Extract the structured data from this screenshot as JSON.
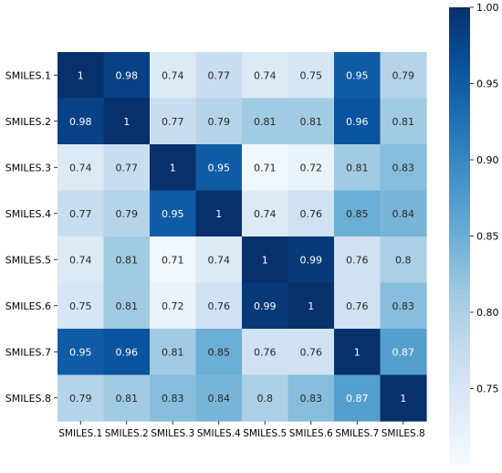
{
  "chart_data": {
    "type": "heatmap",
    "x_labels": [
      "SMILES.1",
      "SMILES.2",
      "SMILES.3",
      "SMILES.4",
      "SMILES.5",
      "SMILES.6",
      "SMILES.7",
      "SMILES.8"
    ],
    "y_labels": [
      "SMILES.1",
      "SMILES.2",
      "SMILES.3",
      "SMILES.4",
      "SMILES.5",
      "SMILES.6",
      "SMILES.7",
      "SMILES.8"
    ],
    "values": [
      [
        1,
        0.98,
        0.74,
        0.77,
        0.74,
        0.75,
        0.95,
        0.79
      ],
      [
        0.98,
        1,
        0.77,
        0.79,
        0.81,
        0.81,
        0.96,
        0.81
      ],
      [
        0.74,
        0.77,
        1,
        0.95,
        0.71,
        0.72,
        0.81,
        0.83
      ],
      [
        0.77,
        0.79,
        0.95,
        1,
        0.74,
        0.76,
        0.85,
        0.84
      ],
      [
        0.74,
        0.81,
        0.71,
        0.74,
        1,
        0.99,
        0.76,
        0.8
      ],
      [
        0.75,
        0.81,
        0.72,
        0.76,
        0.99,
        1,
        0.76,
        0.83
      ],
      [
        0.95,
        0.96,
        0.81,
        0.85,
        0.76,
        0.76,
        1,
        0.87
      ],
      [
        0.79,
        0.81,
        0.83,
        0.84,
        0.8,
        0.83,
        0.87,
        1
      ]
    ],
    "cell_labels": [
      [
        "1",
        "0.98",
        "0.74",
        "0.77",
        "0.74",
        "0.75",
        "0.95",
        "0.79"
      ],
      [
        "0.98",
        "1",
        "0.77",
        "0.79",
        "0.81",
        "0.81",
        "0.96",
        "0.81"
      ],
      [
        "0.74",
        "0.77",
        "1",
        "0.95",
        "0.71",
        "0.72",
        "0.81",
        "0.83"
      ],
      [
        "0.77",
        "0.79",
        "0.95",
        "1",
        "0.74",
        "0.76",
        "0.85",
        "0.84"
      ],
      [
        "0.74",
        "0.81",
        "0.71",
        "0.74",
        "1",
        "0.99",
        "0.76",
        "0.8"
      ],
      [
        "0.75",
        "0.81",
        "0.72",
        "0.76",
        "0.99",
        "1",
        "0.76",
        "0.83"
      ],
      [
        "0.95",
        "0.96",
        "0.81",
        "0.85",
        "0.76",
        "0.76",
        "1",
        "0.87"
      ],
      [
        "0.79",
        "0.81",
        "0.83",
        "0.84",
        "0.8",
        "0.83",
        "0.87",
        "1"
      ]
    ],
    "colorbar": {
      "min": 0.7,
      "max": 1.0,
      "ticks": [
        0.75,
        0.8,
        0.85,
        0.9,
        0.95,
        1.0
      ],
      "tick_labels": [
        "0.75",
        "0.80",
        "0.85",
        "0.90",
        "0.95",
        "1.00"
      ]
    },
    "colormap": "Blues",
    "colors": {
      "stops": [
        "#f7fbff",
        "#deebf7",
        "#c6dbef",
        "#9ecae1",
        "#6baed6",
        "#4292c6",
        "#2171b5",
        "#08519c",
        "#08306b"
      ],
      "dark_text": "#262626",
      "light_text": "#ffffff"
    }
  }
}
